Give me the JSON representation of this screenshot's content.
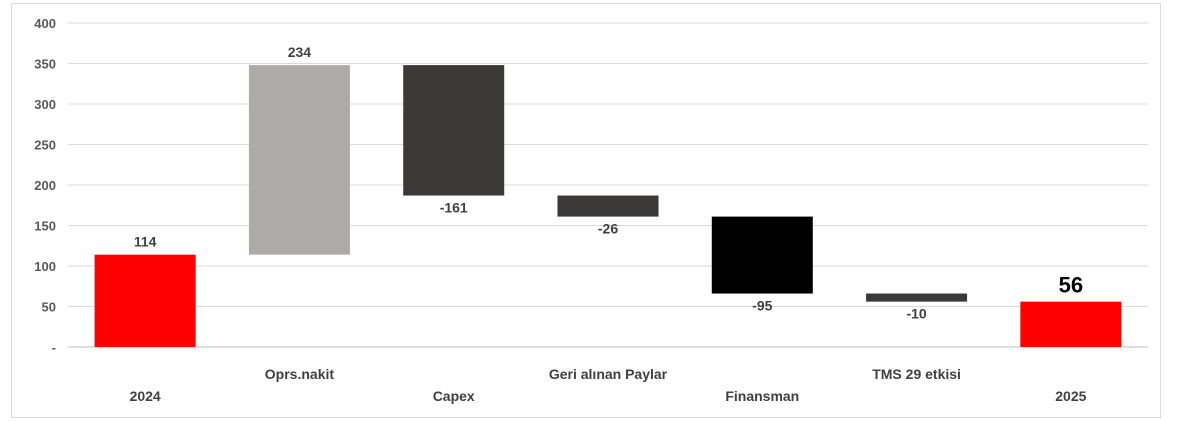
{
  "chart_data": {
    "type": "bar",
    "subtype": "waterfall",
    "title": "",
    "xlabel": "",
    "ylabel": "",
    "ylim": [
      0,
      400
    ],
    "ytick_step": 50,
    "ytick_labels": [
      "-",
      "50",
      "100",
      "150",
      "200",
      "250",
      "300",
      "350",
      "400"
    ],
    "grid": true,
    "legend": "none",
    "categories": [
      "2024",
      "Oprs.nakit",
      "Capex",
      "Geri alınan Paylar",
      "Finansman",
      "TMS 29 etkisi",
      "2025"
    ],
    "bars": [
      {
        "category": "2024",
        "start": 0,
        "end": 114,
        "label": "114",
        "color": "#ff0000",
        "kind": "total"
      },
      {
        "category": "Oprs.nakit",
        "start": 114,
        "end": 348,
        "label": "234",
        "color": "#aeaaaa",
        "kind": "delta"
      },
      {
        "category": "Capex",
        "start": 348,
        "end": 187,
        "label": "-161",
        "color": "#3b3838",
        "kind": "delta"
      },
      {
        "category": "Geri alınan Paylar",
        "start": 187,
        "end": 161,
        "label": "-26",
        "color": "#3b3838",
        "kind": "delta"
      },
      {
        "category": "Finansman",
        "start": 161,
        "end": 66,
        "label": "-95",
        "color": "#000000",
        "kind": "delta"
      },
      {
        "category": "TMS 29 etkisi",
        "start": 66,
        "end": 56,
        "label": "-10",
        "color": "#3b3838",
        "kind": "delta"
      },
      {
        "category": "2025",
        "start": 0,
        "end": 56,
        "label": "56",
        "color": "#ff0000",
        "kind": "total"
      }
    ]
  }
}
